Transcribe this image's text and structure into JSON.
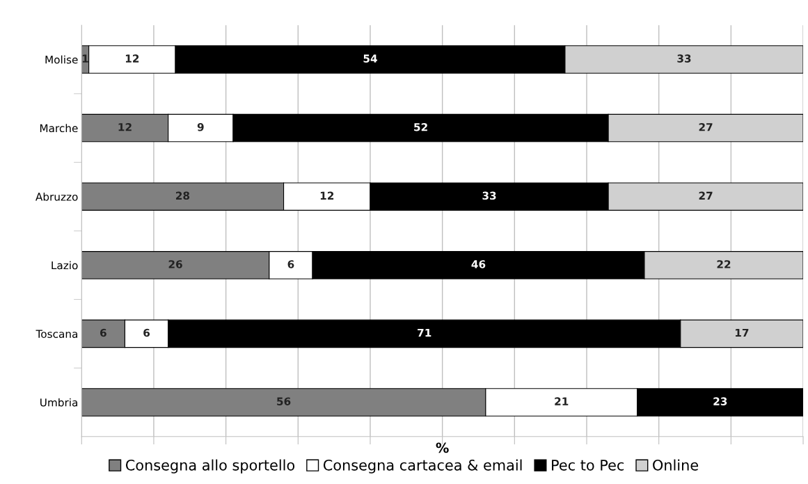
{
  "chart_data": {
    "type": "bar",
    "orientation": "horizontal",
    "stacked": true,
    "xlabel": "%",
    "categories": [
      "Molise",
      "Marche",
      "Abruzzo",
      "Lazio",
      "Toscana",
      "Umbria"
    ],
    "series": [
      {
        "name": "Consegna allo sportello",
        "color": "#808080",
        "values": [
          1,
          12,
          28,
          26,
          6,
          56
        ]
      },
      {
        "name": "Consegna cartacea & email",
        "color": "#ffffff",
        "values": [
          12,
          9,
          12,
          6,
          6,
          21
        ]
      },
      {
        "name": "Pec to Pec",
        "color": "#000000",
        "values": [
          54,
          52,
          33,
          46,
          71,
          23
        ]
      },
      {
        "name": "Online",
        "color": "#d0d0d0",
        "values": [
          33,
          27,
          27,
          22,
          17,
          null
        ]
      }
    ],
    "xlim": [
      0,
      100
    ],
    "xticks": [
      {
        "value": 0,
        "label": null
      },
      {
        "value": 10,
        "label": null
      },
      {
        "value": 20,
        "label": null
      },
      {
        "value": 30,
        "label": null
      },
      {
        "value": 40,
        "label": null
      },
      {
        "value": 50,
        "label": null
      },
      {
        "value": 60,
        "label": null
      },
      {
        "value": 70,
        "label": null
      },
      {
        "value": 80,
        "label": null
      },
      {
        "value": 90,
        "label": null
      },
      {
        "value": 100,
        "label": null
      }
    ],
    "tick_labels": "y",
    "grid": "x",
    "legend": "bottom",
    "data_labels": true
  }
}
